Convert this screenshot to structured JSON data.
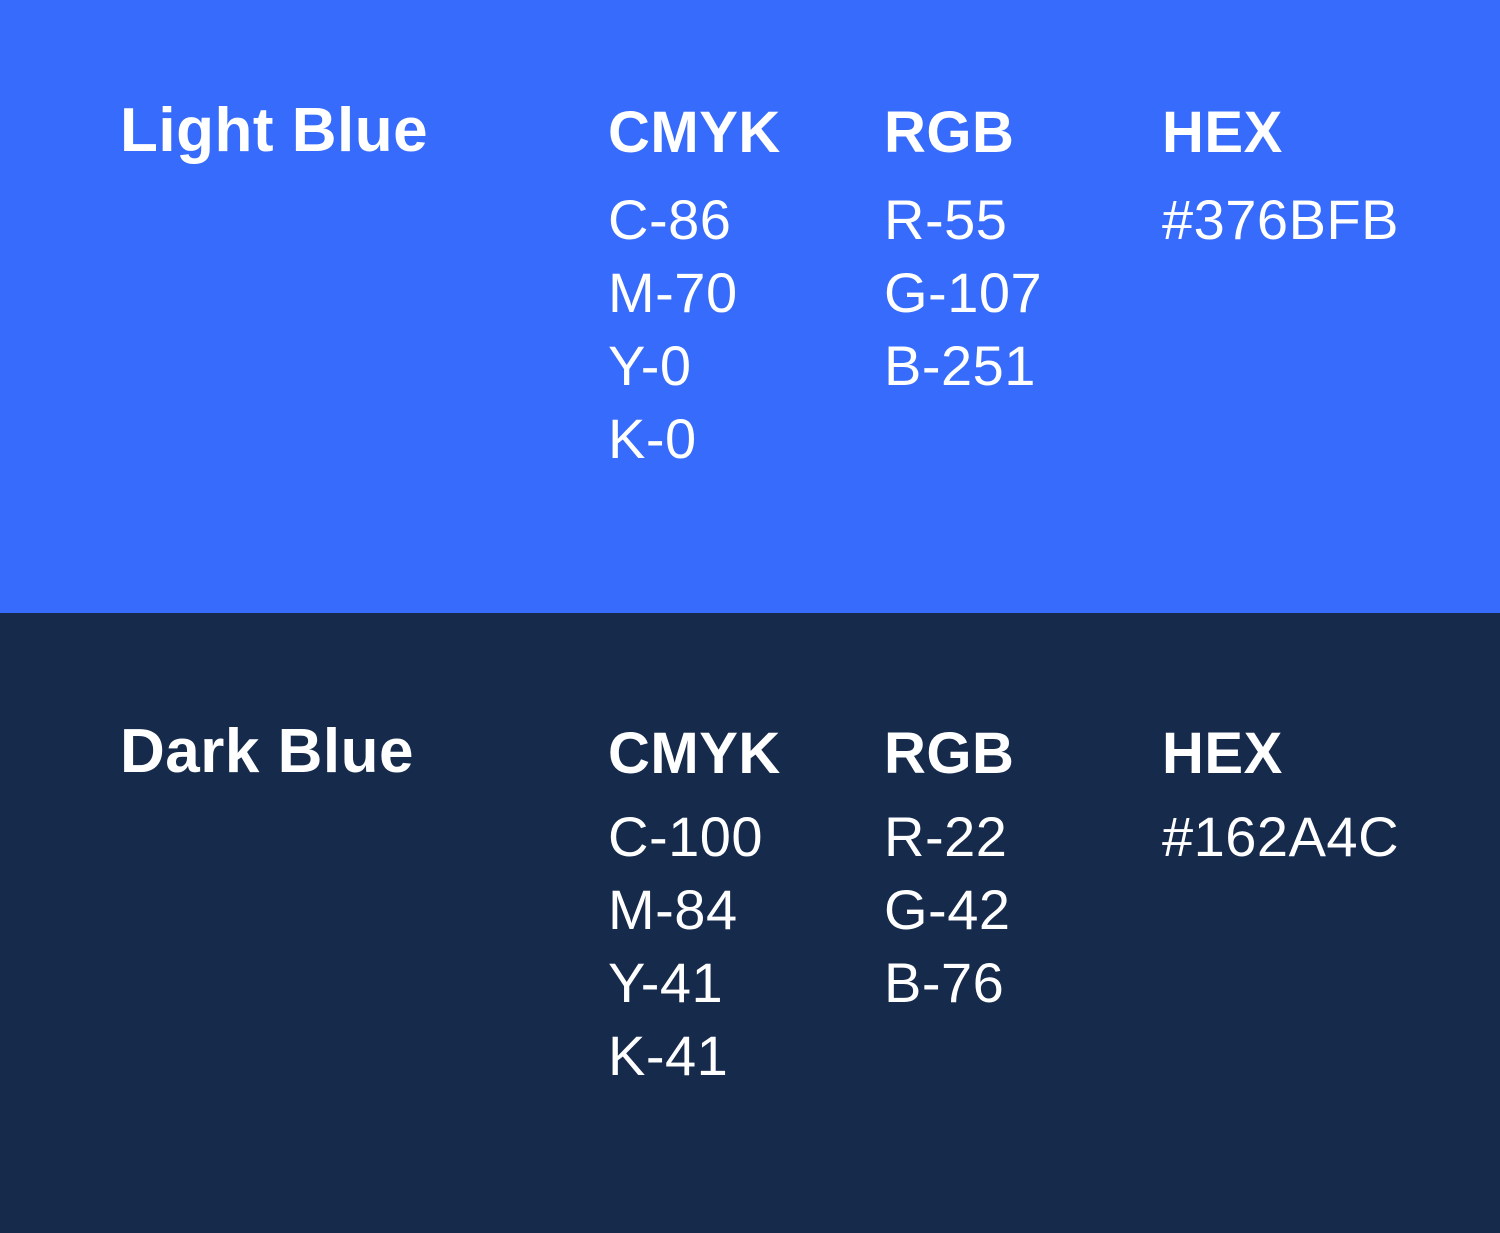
{
  "swatches": [
    {
      "name": "Light Blue",
      "background": "#376BFB",
      "text_color": "#FFFFFF",
      "columns": [
        {
          "label": "CMYK",
          "values": [
            "C-86",
            "M-70",
            "Y-0",
            "K-0"
          ]
        },
        {
          "label": "RGB",
          "values": [
            "R-55",
            "G-107",
            "B-251"
          ]
        },
        {
          "label": "HEX",
          "values": [
            "#376BFB"
          ]
        }
      ]
    },
    {
      "name": "Dark Blue",
      "background": "#162A4C",
      "text_color": "#FFFFFF",
      "columns": [
        {
          "label": "CMYK",
          "values": [
            "C-100",
            "M-84",
            "Y-41",
            "K-41"
          ]
        },
        {
          "label": "RGB",
          "values": [
            "R-22",
            "G-42",
            "B-76"
          ]
        },
        {
          "label": "HEX",
          "values": [
            "#162A4C"
          ]
        }
      ]
    }
  ]
}
